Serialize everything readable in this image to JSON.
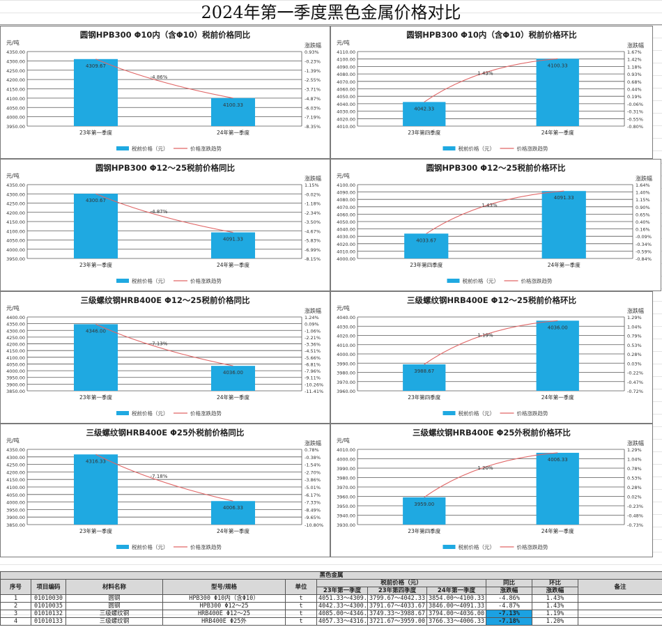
{
  "page": {
    "title": "2024年第一季度黑色金属价格对比"
  },
  "colors": {
    "bar": "#1fa9e1",
    "line": "#e06666",
    "grid": "#555555",
    "highlight": "#1ba1e2"
  },
  "legend": {
    "bar_label": "税前价格（元）",
    "line_label": "价格涨跌趋势"
  },
  "axis_labels": {
    "left": "元/吨",
    "right": "涨跌幅"
  },
  "chart_data": [
    {
      "type": "bar",
      "title": "圆钢HPB300 Φ10内（含Φ10）税前价格同比",
      "categories": [
        "23年第一季度",
        "24年第一季度"
      ],
      "values": [
        4309.67,
        4100.33
      ],
      "value_labels": [
        "4309.67",
        "4100.33"
      ],
      "change_label": "-4.86%",
      "ylabel": "元/吨",
      "y2label": "涨跌幅",
      "ylim": [
        3950,
        4350
      ],
      "yticks": [
        "4350.00",
        "4300.00",
        "4250.00",
        "4200.00",
        "4150.00",
        "4100.00",
        "4050.00",
        "4000.00",
        "3950.00"
      ],
      "y2ticks": [
        "0.93%",
        "-0.23%",
        "-1.39%",
        "-2.55%",
        "-3.71%",
        "-4.87%",
        "-6.03%",
        "-7.19%",
        "-8.35%"
      ],
      "series": [
        {
          "name": "税前价格（元）",
          "values": [
            4309.67,
            4100.33
          ]
        },
        {
          "name": "价格涨跌趋势",
          "values": [
            0,
            -4.86
          ]
        }
      ],
      "grid": true,
      "legend_position": "bottom"
    },
    {
      "type": "bar",
      "title": "圆钢HPB300 Φ10内（含Φ10）税前价格环比",
      "categories": [
        "23年第四季度",
        "24年第一季度"
      ],
      "values": [
        4042.33,
        4100.33
      ],
      "value_labels": [
        "4042.33",
        "4100.33"
      ],
      "change_label": "1.43%",
      "ylabel": "元/吨",
      "y2label": "涨跌幅",
      "ylim": [
        4010,
        4110
      ],
      "yticks": [
        "4110.00",
        "4100.00",
        "4090.00",
        "4080.00",
        "4070.00",
        "4060.00",
        "4050.00",
        "4040.00",
        "4030.00",
        "4020.00",
        "4010.00"
      ],
      "y2ticks": [
        "1.67%",
        "1.42%",
        "1.18%",
        "0.93%",
        "0.68%",
        "0.44%",
        "0.19%",
        "-0.06%",
        "-0.31%",
        "-0.55%",
        "-0.80%"
      ],
      "series": [
        {
          "name": "税前价格（元）",
          "values": [
            4042.33,
            4100.33
          ]
        },
        {
          "name": "价格涨跌趋势",
          "values": [
            0,
            1.43
          ]
        }
      ],
      "grid": true,
      "legend_position": "bottom"
    },
    {
      "type": "bar",
      "title": "圆钢HPB300 Φ12～25税前价格同比",
      "categories": [
        "23年第一季度",
        "24年第一季度"
      ],
      "values": [
        4300.67,
        4091.33
      ],
      "value_labels": [
        "4300.67",
        "4091.33"
      ],
      "change_label": "-4.87%",
      "ylabel": "元/吨",
      "y2label": "涨跌幅",
      "ylim": [
        3950,
        4350
      ],
      "yticks": [
        "4350.00",
        "4300.00",
        "4250.00",
        "4200.00",
        "4150.00",
        "4100.00",
        "4050.00",
        "4000.00",
        "3950.00"
      ],
      "y2ticks": [
        "1.15%",
        "-0.02%",
        "-1.18%",
        "-2.34%",
        "-3.50%",
        "-4.67%",
        "-5.83%",
        "-6.99%",
        "-8.15%"
      ],
      "series": [
        {
          "name": "税前价格（元）",
          "values": [
            4300.67,
            4091.33
          ]
        },
        {
          "name": "价格涨跌趋势",
          "values": [
            0,
            -4.87
          ]
        }
      ],
      "grid": true,
      "legend_position": "bottom"
    },
    {
      "type": "bar",
      "title": "圆钢HPB300 Φ12～25税前价格环比",
      "categories": [
        "23年第四季度",
        "24年第一季度"
      ],
      "values": [
        4033.67,
        4091.33
      ],
      "value_labels": [
        "4033.67",
        "4091.33"
      ],
      "change_label": "1.43%",
      "ylabel": "元/吨",
      "y2label": "涨跌幅",
      "ylim": [
        4000,
        4100
      ],
      "yticks": [
        "4100.00",
        "4090.00",
        "4080.00",
        "4070.00",
        "4060.00",
        "4050.00",
        "4040.00",
        "4030.00",
        "4020.00",
        "4010.00",
        "4000.00"
      ],
      "y2ticks": [
        "1.64%",
        "1.40%",
        "1.15%",
        "0.90%",
        "0.65%",
        "0.40%",
        "0.16%",
        "-0.09%",
        "-0.34%",
        "-0.59%",
        "-0.84%"
      ],
      "series": [
        {
          "name": "税前价格（元）",
          "values": [
            4033.67,
            4091.33
          ]
        },
        {
          "name": "价格涨跌趋势",
          "values": [
            0,
            1.43
          ]
        }
      ],
      "grid": true,
      "legend_position": "bottom"
    },
    {
      "type": "bar",
      "title": "三级螺纹钢HRB400E Φ12～25税前价格同比",
      "categories": [
        "23年第一季度",
        "24年第一季度"
      ],
      "values": [
        4346.0,
        4036.0
      ],
      "value_labels": [
        "4346.00",
        "4036.00"
      ],
      "change_label": "-7.13%",
      "ylabel": "元/吨",
      "y2label": "涨跌幅",
      "ylim": [
        3850,
        4400
      ],
      "yticks": [
        "4400.00",
        "4350.00",
        "4300.00",
        "4250.00",
        "4200.00",
        "4150.00",
        "4100.00",
        "4050.00",
        "4000.00",
        "3950.00",
        "3900.00",
        "3850.00"
      ],
      "y2ticks": [
        "1.24%",
        "0.09%",
        "-1.06%",
        "-2.21%",
        "-3.36%",
        "-4.51%",
        "-5.66%",
        "-6.81%",
        "-7.96%",
        "-9.11%",
        "-10.26%",
        "-11.41%"
      ],
      "series": [
        {
          "name": "税前价格（元）",
          "values": [
            4346.0,
            4036.0
          ]
        },
        {
          "name": "价格涨跌趋势",
          "values": [
            0,
            -7.13
          ]
        }
      ],
      "grid": true,
      "legend_position": "bottom"
    },
    {
      "type": "bar",
      "title": "三级螺纹钢HRB400E Φ12～25税前价格环比",
      "categories": [
        "23年第四季度",
        "24年第一季度"
      ],
      "values": [
        3988.67,
        4036.0
      ],
      "value_labels": [
        "3988.67",
        "4036.00"
      ],
      "change_label": "1.19%",
      "ylabel": "元/吨",
      "y2label": "涨跌幅",
      "ylim": [
        3960,
        4040
      ],
      "yticks": [
        "4040.00",
        "4030.00",
        "4020.00",
        "4010.00",
        "4000.00",
        "3990.00",
        "3980.00",
        "3970.00",
        "3960.00"
      ],
      "y2ticks": [
        "1.29%",
        "1.04%",
        "0.79%",
        "0.53%",
        "0.28%",
        "0.03%",
        "-0.22%",
        "-0.47%",
        "-0.72%"
      ],
      "series": [
        {
          "name": "税前价格（元）",
          "values": [
            3988.67,
            4036.0
          ]
        },
        {
          "name": "价格涨跌趋势",
          "values": [
            0,
            1.19
          ]
        }
      ],
      "grid": true,
      "legend_position": "bottom"
    },
    {
      "type": "bar",
      "title": "三级螺纹钢HRB400E Φ25外税前价格同比",
      "categories": [
        "23年第一季度",
        "24年第一季度"
      ],
      "values": [
        4316.33,
        4006.33
      ],
      "value_labels": [
        "4316.33",
        "4006.33"
      ],
      "change_label": "-7.18%",
      "ylabel": "元/吨",
      "y2label": "涨跌幅",
      "ylim": [
        3850,
        4350
      ],
      "yticks": [
        "4350.00",
        "4300.00",
        "4250.00",
        "4200.00",
        "4150.00",
        "4100.00",
        "4050.00",
        "4000.00",
        "3950.00",
        "3900.00",
        "3850.00"
      ],
      "y2ticks": [
        "0.78%",
        "-0.38%",
        "-1.54%",
        "-2.70%",
        "-3.86%",
        "-5.01%",
        "-6.17%",
        "-7.33%",
        "-8.49%",
        "-9.65%",
        "-10.80%"
      ],
      "series": [
        {
          "name": "税前价格（元）",
          "values": [
            4316.33,
            4006.33
          ]
        },
        {
          "name": "价格涨跌趋势",
          "values": [
            0,
            -7.18
          ]
        }
      ],
      "grid": true,
      "legend_position": "bottom"
    },
    {
      "type": "bar",
      "title": "三级螺纹钢HRB400E Φ25外税前价格环比",
      "categories": [
        "23年第四季度",
        "24年第一季度"
      ],
      "values": [
        3959.0,
        4006.33
      ],
      "value_labels": [
        "3959.00",
        "4006.33"
      ],
      "change_label": "1.20%",
      "ylabel": "元/吨",
      "y2label": "涨跌幅",
      "ylim": [
        3930,
        4010
      ],
      "yticks": [
        "4010.00",
        "4000.00",
        "3990.00",
        "3980.00",
        "3970.00",
        "3960.00",
        "3950.00",
        "3940.00",
        "3930.00"
      ],
      "y2ticks": [
        "1.29%",
        "1.04%",
        "0.78%",
        "0.53%",
        "0.28%",
        "0.02%",
        "-0.23%",
        "-0.48%",
        "-0.73%"
      ],
      "series": [
        {
          "name": "税前价格（元）",
          "values": [
            3959.0,
            4006.33
          ]
        },
        {
          "name": "价格涨跌趋势",
          "values": [
            0,
            1.2
          ]
        }
      ],
      "grid": true,
      "legend_position": "bottom"
    }
  ],
  "table": {
    "category": "黑色金属",
    "headers": {
      "seq": "序号",
      "code": "项目编码",
      "name": "材料名称",
      "spec": "型号/规格",
      "unit": "单位",
      "price_group": "税前价格（元）",
      "q1_23": "23年第一季度",
      "q4_23": "23年第四季度",
      "q1_24": "24年第一季度",
      "yoy_1": "同比",
      "yoy_2": "涨跌幅",
      "mom_1": "环比",
      "mom_2": "涨跌幅",
      "note": "备注"
    },
    "rows": [
      {
        "seq": "1",
        "code": "01010030",
        "name": "圆钢",
        "spec": "HPB300 Φ10内（含Φ10）",
        "unit": "t",
        "q1_23": "4051.33～4309.67",
        "q4_23": "3799.67～4042.33",
        "q1_24": "3854.00～4100.33",
        "yoy": "-4.86%",
        "mom": "1.43%",
        "note": ""
      },
      {
        "seq": "2",
        "code": "01010035",
        "name": "圆钢",
        "spec": "HPB300 Φ12～25",
        "unit": "t",
        "q1_23": "4042.33～4300.67",
        "q4_23": "3791.67～4033.67",
        "q1_24": "3846.00～4091.33",
        "yoy": "-4.87%",
        "mom": "1.43%",
        "note": ""
      },
      {
        "seq": "3",
        "code": "01010132",
        "name": "三级螺纹钢",
        "spec": "HRB400E Φ12～25",
        "unit": "t",
        "q1_23": "4085.00～4346.00",
        "q4_23": "3749.33～3988.67",
        "q1_24": "3794.00～4036.00",
        "yoy": "-7.13%",
        "mom": "1.19%",
        "note": ""
      },
      {
        "seq": "4",
        "code": "01010133",
        "name": "三级螺纹钢",
        "spec": "HRB400E Φ25外",
        "unit": "t",
        "q1_23": "4057.33～4316.33",
        "q4_23": "3721.67～3959.00",
        "q1_24": "3766.33～4006.33",
        "yoy": "-7.18%",
        "mom": "1.20%",
        "note": ""
      }
    ]
  }
}
